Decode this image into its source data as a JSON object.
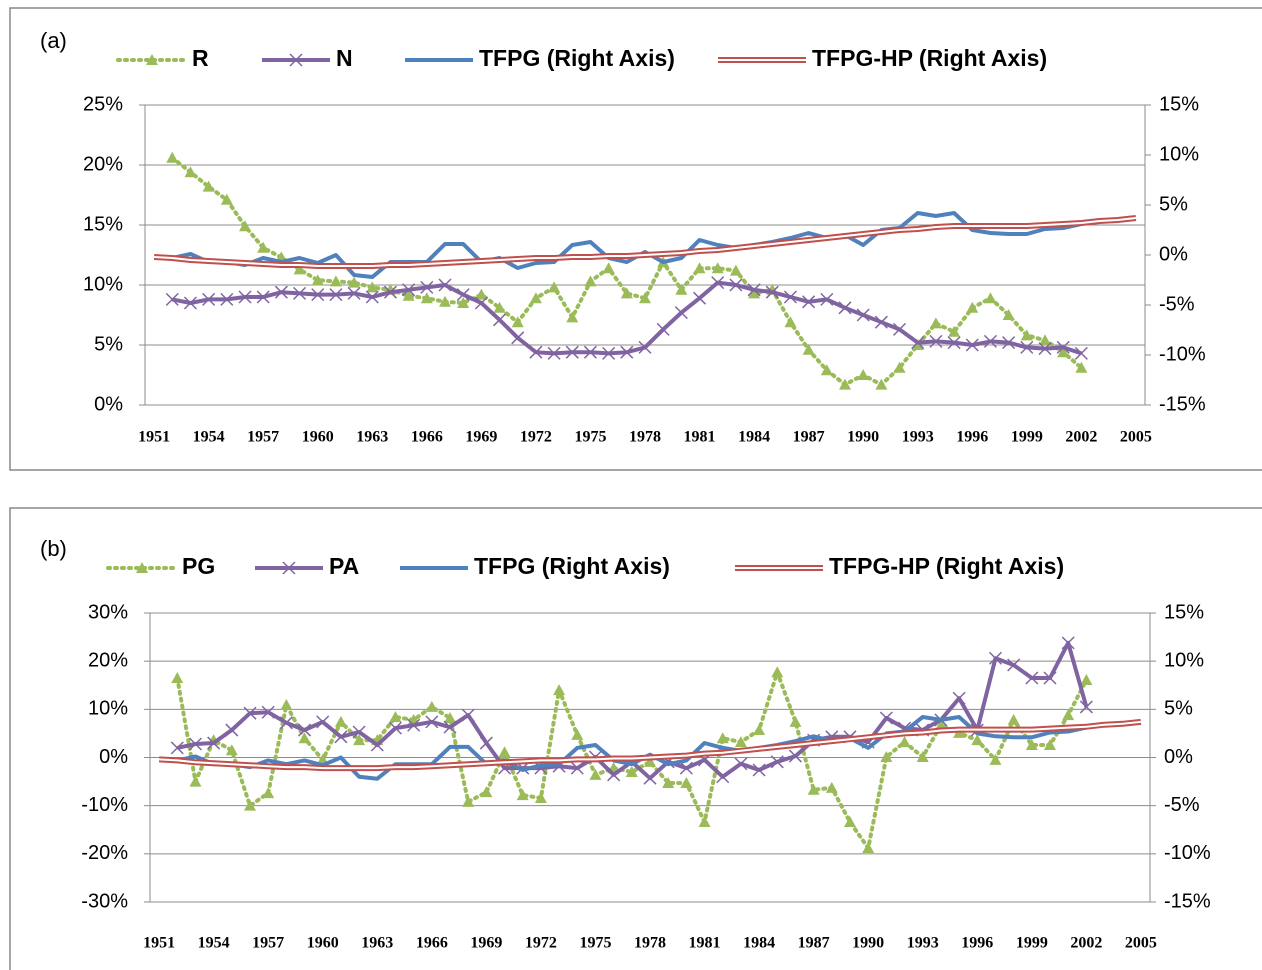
{
  "chart_data": [
    {
      "type": "line",
      "panel_label": "(a)",
      "categories": [
        "1951",
        null,
        null,
        "1954",
        null,
        null,
        "1957",
        null,
        null,
        "1960",
        null,
        null,
        "1963",
        null,
        null,
        "1966",
        null,
        null,
        "1969",
        null,
        null,
        "1972",
        null,
        null,
        "1975",
        null,
        null,
        "1978",
        null,
        null,
        "1981",
        null,
        null,
        "1984",
        null,
        null,
        "1987",
        null,
        null,
        "1990",
        null,
        null,
        "1993",
        null,
        null,
        "1996",
        null,
        null,
        "1999",
        null,
        null,
        "2002",
        null,
        null,
        "2005"
      ],
      "series": [
        {
          "name": "R",
          "color": "#9bbb59",
          "line_style": "dotted",
          "marker": "triangle",
          "values": [
            null,
            20.6,
            19.4,
            18.2,
            17.1,
            14.9,
            13.1,
            12.3,
            11.3,
            10.4,
            10.3,
            10.2,
            9.8,
            9.6,
            9.1,
            8.9,
            8.6,
            8.5,
            9.2,
            8.1,
            6.9,
            8.9,
            9.8,
            7.3,
            10.3,
            11.4,
            9.3,
            8.9,
            11.9,
            9.6,
            11.4,
            11.4,
            11.2,
            9.3,
            9.6,
            6.9,
            4.6,
            2.9,
            1.7,
            2.5,
            1.7,
            3.1,
            5.0,
            6.8,
            6.1,
            8.1,
            8.9,
            7.5,
            5.8,
            5.4,
            4.4,
            3.1,
            null,
            null,
            null
          ]
        },
        {
          "name": "N",
          "color": "#8064a2",
          "line_style": "solid",
          "marker": "x",
          "values": [
            null,
            8.8,
            8.5,
            8.8,
            8.8,
            9.0,
            9.0,
            9.4,
            9.3,
            9.2,
            9.2,
            9.3,
            9.0,
            9.4,
            9.6,
            9.8,
            10.0,
            9.2,
            8.5,
            7.1,
            5.6,
            4.4,
            4.3,
            4.4,
            4.4,
            4.3,
            4.4,
            4.8,
            6.3,
            7.7,
            8.9,
            10.2,
            10.0,
            9.6,
            9.4,
            9.0,
            8.6,
            8.8,
            8.1,
            7.5,
            6.9,
            6.3,
            5.2,
            5.3,
            5.2,
            5.0,
            5.3,
            5.2,
            4.8,
            4.7,
            4.8,
            4.3,
            null,
            null,
            null
          ]
        },
        {
          "name": "TFPG (Right Axis)",
          "color": "#4f81bd",
          "line_style": "solid",
          "marker": "none",
          "axis": "y2",
          "values": [
            null,
            -0.3,
            0.1,
            -0.7,
            -0.7,
            -1.0,
            -0.3,
            -0.7,
            -0.3,
            -0.8,
            0,
            -2.0,
            -2.2,
            -0.7,
            -0.7,
            -0.7,
            1.1,
            1.1,
            -0.7,
            -0.3,
            -1.3,
            -0.8,
            -0.7,
            1.0,
            1.3,
            -0.3,
            -0.7,
            0.3,
            -0.7,
            -0.3,
            1.5,
            1.0,
            0.7,
            1.0,
            1.3,
            1.7,
            2.2,
            1.7,
            2.0,
            1.0,
            2.5,
            2.7,
            4.2,
            3.9,
            4.2,
            2.5,
            2.2,
            2.1,
            2.1,
            2.6,
            2.7,
            3.1,
            null,
            null,
            null
          ]
        },
        {
          "name": "TFPG-HP (Right Axis)",
          "color": "#c0504d",
          "line_style": "double",
          "marker": "none",
          "axis": "y2",
          "values": [
            -0.2,
            -0.3,
            -0.5,
            -0.6,
            -0.7,
            -0.8,
            -0.9,
            -1.0,
            -1.0,
            -1.1,
            -1.1,
            -1.1,
            -1.1,
            -1.0,
            -1.0,
            -0.9,
            -0.8,
            -0.7,
            -0.6,
            -0.5,
            -0.4,
            -0.3,
            -0.3,
            -0.2,
            -0.2,
            -0.1,
            -0.1,
            0,
            0.1,
            0.2,
            0.4,
            0.5,
            0.7,
            0.9,
            1.1,
            1.3,
            1.5,
            1.7,
            1.9,
            2.1,
            2.3,
            2.5,
            2.6,
            2.8,
            2.9,
            2.9,
            2.9,
            2.9,
            2.9,
            3.0,
            3.1,
            3.2,
            3.4,
            3.5,
            3.7
          ]
        }
      ],
      "ylim": [
        0,
        25
      ],
      "yticks": [
        {
          "value": 0,
          "label": "0%"
        },
        {
          "value": 5,
          "label": "5%"
        },
        {
          "value": 10,
          "label": "10%"
        },
        {
          "value": 15,
          "label": "15%"
        },
        {
          "value": 20,
          "label": "20%"
        },
        {
          "value": 25,
          "label": "25%"
        }
      ],
      "y2lim": [
        -15,
        15
      ],
      "y2ticks": [
        {
          "value": -15,
          "label": "-15%"
        },
        {
          "value": -10,
          "label": "-10%"
        },
        {
          "value": -5,
          "label": "-5%"
        },
        {
          "value": 0,
          "label": "0%"
        },
        {
          "value": 5,
          "label": "5%"
        },
        {
          "value": 10,
          "label": "10%"
        },
        {
          "value": 15,
          "label": "15%"
        }
      ],
      "grid": true,
      "legend": "top"
    },
    {
      "type": "line",
      "panel_label": "(b)",
      "categories": [
        "1951",
        null,
        null,
        "1954",
        null,
        null,
        "1957",
        null,
        null,
        "1960",
        null,
        null,
        "1963",
        null,
        null,
        "1966",
        null,
        null,
        "1969",
        null,
        null,
        "1972",
        null,
        null,
        "1975",
        null,
        null,
        "1978",
        null,
        null,
        "1981",
        null,
        null,
        "1984",
        null,
        null,
        "1987",
        null,
        null,
        "1990",
        null,
        null,
        "1993",
        null,
        null,
        "1996",
        null,
        null,
        "1999",
        null,
        null,
        "2002",
        null,
        null,
        "2005"
      ],
      "series": [
        {
          "name": "PG",
          "color": "#9bbb59",
          "line_style": "dotted",
          "marker": "triangle",
          "values": [
            null,
            16.5,
            -5.0,
            3.6,
            1.5,
            -10,
            -7.4,
            10.9,
            4.0,
            -0.5,
            7.4,
            3.6,
            3.6,
            8.4,
            7.8,
            10.5,
            8.2,
            -9.2,
            -7.2,
            1.1,
            -7.8,
            -8.4,
            14.0,
            4.7,
            -3.6,
            -2.2,
            -3.0,
            -0.9,
            -5.3,
            -5.3,
            -13.4,
            4.0,
            3.2,
            5.7,
            17.7,
            7.4,
            -6.7,
            -6.3,
            -13.4,
            -18.8,
            0.1,
            3.2,
            0.1,
            6.7,
            5.1,
            3.6,
            -0.5,
            7.8,
            2.6,
            2.6,
            8.8,
            16.1,
            null,
            null,
            null
          ]
        },
        {
          "name": "PA",
          "color": "#8064a2",
          "line_style": "solid",
          "marker": "x",
          "values": [
            null,
            2.0,
            2.8,
            3.0,
            5.7,
            9.2,
            9.4,
            7.2,
            5.7,
            7.4,
            4.3,
            5.3,
            2.6,
            6.1,
            6.7,
            7.4,
            6.3,
            8.8,
            3.0,
            -2.2,
            -2.2,
            -2.2,
            -1.8,
            -2.2,
            0.1,
            -3.6,
            -0.9,
            -4.3,
            -0.9,
            -2.2,
            -0.5,
            -4.0,
            -1.3,
            -2.6,
            -0.9,
            0.3,
            3.6,
            4.3,
            4.3,
            3.2,
            8.2,
            6.1,
            5.7,
            7.8,
            12.3,
            5.7,
            20.6,
            19.2,
            16.5,
            16.5,
            23.8,
            10.5,
            null,
            null,
            null
          ]
        },
        {
          "name": "TFPG (Right Axis)",
          "color": "#4f81bd",
          "line_style": "solid",
          "marker": "none",
          "axis": "y2",
          "values": [
            null,
            -0.3,
            0.1,
            -0.7,
            -0.7,
            -1.0,
            -0.3,
            -0.7,
            -0.3,
            -0.8,
            0,
            -2.0,
            -2.2,
            -0.7,
            -0.7,
            -0.7,
            1.1,
            1.1,
            -0.7,
            -0.3,
            -1.3,
            -0.8,
            -0.7,
            1.0,
            1.3,
            -0.3,
            -0.7,
            0.3,
            -0.7,
            -0.3,
            1.5,
            1.0,
            0.7,
            1.0,
            1.3,
            1.7,
            2.2,
            1.7,
            2.0,
            1.0,
            2.5,
            2.7,
            4.2,
            3.9,
            4.2,
            2.5,
            2.2,
            2.1,
            2.1,
            2.6,
            2.7,
            3.1,
            null,
            null,
            null
          ]
        },
        {
          "name": "TFPG-HP (Right Axis)",
          "color": "#c0504d",
          "line_style": "double",
          "marker": "none",
          "axis": "y2",
          "values": [
            -0.2,
            -0.3,
            -0.5,
            -0.6,
            -0.7,
            -0.8,
            -0.9,
            -1.0,
            -1.0,
            -1.1,
            -1.1,
            -1.1,
            -1.1,
            -1.0,
            -1.0,
            -0.9,
            -0.8,
            -0.7,
            -0.6,
            -0.5,
            -0.4,
            -0.3,
            -0.3,
            -0.2,
            -0.2,
            -0.1,
            -0.1,
            0,
            0.1,
            0.2,
            0.4,
            0.5,
            0.7,
            0.9,
            1.1,
            1.3,
            1.5,
            1.7,
            1.9,
            2.1,
            2.3,
            2.5,
            2.6,
            2.8,
            2.9,
            2.9,
            2.9,
            2.9,
            2.9,
            3.0,
            3.1,
            3.2,
            3.4,
            3.5,
            3.7
          ]
        }
      ],
      "ylim": [
        -30,
        30
      ],
      "yticks": [
        {
          "value": -30,
          "label": "-30%"
        },
        {
          "value": -20,
          "label": "-20%"
        },
        {
          "value": -10,
          "label": "-10%"
        },
        {
          "value": 0,
          "label": "0%"
        },
        {
          "value": 10,
          "label": "10%"
        },
        {
          "value": 20,
          "label": "20%"
        },
        {
          "value": 30,
          "label": "30%"
        }
      ],
      "y2lim": [
        -15,
        15
      ],
      "y2ticks": [
        {
          "value": -15,
          "label": "-15%"
        },
        {
          "value": -10,
          "label": "-10%"
        },
        {
          "value": -5,
          "label": "-5%"
        },
        {
          "value": 0,
          "label": "0%"
        },
        {
          "value": 5,
          "label": "5%"
        },
        {
          "value": 10,
          "label": "10%"
        },
        {
          "value": 15,
          "label": "15%"
        }
      ],
      "grid": true,
      "legend": "top"
    }
  ]
}
